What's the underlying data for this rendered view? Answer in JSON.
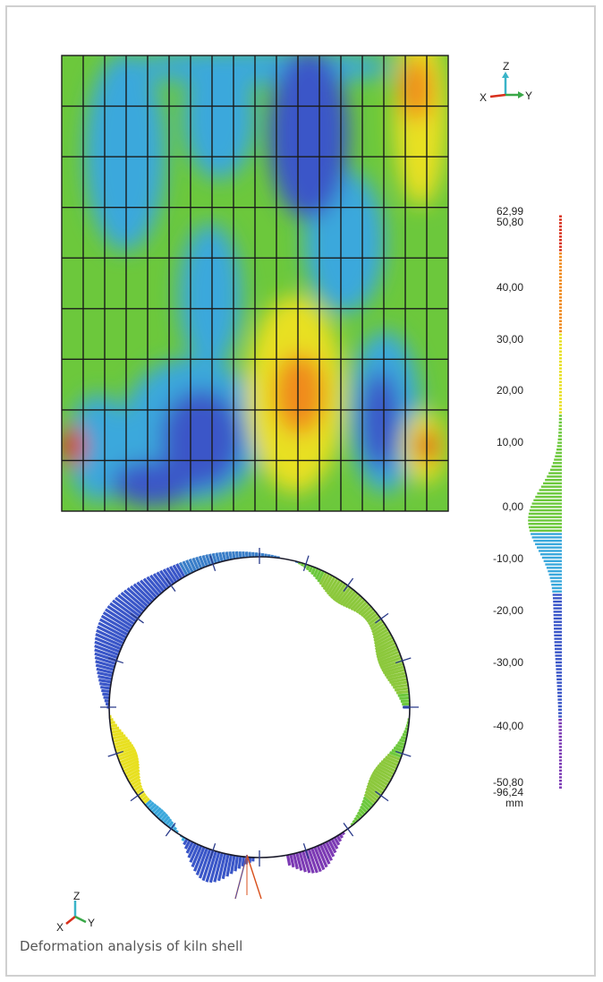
{
  "caption": "Deformation analysis of kiln shell",
  "scale": {
    "labels": [
      "62,99",
      "50,80",
      "40,00",
      "30,00",
      "20,00",
      "10,00",
      "0,00",
      "-10,00",
      "-20,00",
      "-30,00",
      "-40,00",
      "-50,80",
      "-96,24"
    ],
    "unit": "mm",
    "max": 62.99,
    "min": -96.24,
    "clip_max": 50.8,
    "clip_min": -50.8
  },
  "axes_top": {
    "z": "Z",
    "x": "X",
    "y": "Y"
  },
  "axes_bottom": {
    "z": "Z",
    "x": "X",
    "y": "Y"
  },
  "colors": {
    "red": "#d8301c",
    "orange": "#f08a1c",
    "yellow": "#e8e020",
    "green": "#6cc83c",
    "cyan": "#3aa8dc",
    "blue": "#3a56c8",
    "purple": "#7c3ab4",
    "grid": "#1a1a1a"
  }
}
